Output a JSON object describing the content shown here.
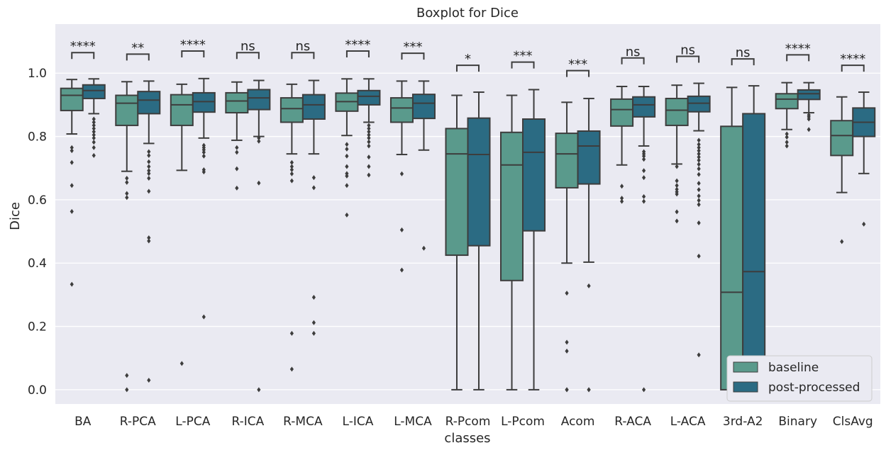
{
  "chart_data": {
    "type": "boxplot",
    "title": "Boxplot for Dice",
    "xlabel": "classes",
    "ylabel": "Dice",
    "ylim": [
      -0.045,
      1.155
    ],
    "yticks": [
      0.0,
      0.2,
      0.4,
      0.6,
      0.8,
      1.0
    ],
    "ytick_labels": [
      "0.0",
      "0.2",
      "0.4",
      "0.6",
      "0.8",
      "1.0"
    ],
    "grid": true,
    "legend_position": "lower-right",
    "colors": {
      "background": "#eaeaf2",
      "grid": "#ffffff",
      "baseline": "#5a9a8c",
      "post-processed": "#2b6b83",
      "line": "#3d3d3d"
    },
    "categories": [
      "BA",
      "R-PCA",
      "L-PCA",
      "R-ICA",
      "R-MCA",
      "L-ICA",
      "L-MCA",
      "R-Pcom",
      "L-Pcom",
      "Acom",
      "R-ACA",
      "L-ACA",
      "3rd-A2",
      "Binary",
      "ClsAvg"
    ],
    "significance": [
      "****",
      "**",
      "****",
      "ns",
      "ns",
      "****",
      "***",
      "*",
      "***",
      "***",
      "ns",
      "ns",
      "ns",
      "****",
      "****"
    ],
    "bracket_y": [
      1.065,
      1.06,
      1.07,
      1.065,
      1.065,
      1.07,
      1.063,
      1.025,
      1.035,
      1.008,
      1.048,
      1.053,
      1.045,
      1.058,
      1.025
    ],
    "series": [
      {
        "name": "baseline",
        "boxes": [
          {
            "whislo": 0.808,
            "q1": 0.882,
            "med": 0.93,
            "q3": 0.952,
            "whishi": 0.98,
            "fliers": [
              0.765,
              0.755,
              0.718,
              0.645,
              0.563,
              0.333
            ]
          },
          {
            "whislo": 0.69,
            "q1": 0.835,
            "med": 0.905,
            "q3": 0.93,
            "whishi": 0.973,
            "fliers": [
              0.668,
              0.655,
              0.62,
              0.607,
              0.045,
              0.0
            ]
          },
          {
            "whislo": 0.693,
            "q1": 0.835,
            "med": 0.9,
            "q3": 0.932,
            "whishi": 0.965,
            "fliers": [
              0.083
            ]
          },
          {
            "whislo": 0.788,
            "q1": 0.875,
            "med": 0.912,
            "q3": 0.938,
            "whishi": 0.972,
            "fliers": [
              0.765,
              0.75,
              0.698,
              0.637
            ]
          },
          {
            "whislo": 0.745,
            "q1": 0.845,
            "med": 0.888,
            "q3": 0.922,
            "whishi": 0.965,
            "fliers": [
              0.718,
              0.705,
              0.695,
              0.682,
              0.66,
              0.178,
              0.065
            ]
          },
          {
            "whislo": 0.803,
            "q1": 0.88,
            "med": 0.91,
            "q3": 0.937,
            "whishi": 0.982,
            "fliers": [
              0.775,
              0.76,
              0.738,
              0.705,
              0.683,
              0.675,
              0.645,
              0.552
            ]
          },
          {
            "whislo": 0.743,
            "q1": 0.845,
            "med": 0.89,
            "q3": 0.922,
            "whishi": 0.975,
            "fliers": [
              0.682,
              0.505,
              0.378
            ]
          },
          {
            "whislo": 0.0,
            "q1": 0.425,
            "med": 0.745,
            "q3": 0.825,
            "whishi": 0.93,
            "fliers": []
          },
          {
            "whislo": 0.0,
            "q1": 0.345,
            "med": 0.71,
            "q3": 0.813,
            "whishi": 0.93,
            "fliers": []
          },
          {
            "whislo": 0.4,
            "q1": 0.638,
            "med": 0.745,
            "q3": 0.81,
            "whishi": 0.908,
            "fliers": [
              0.305,
              0.15,
              0.122,
              0.0,
              0.0
            ]
          },
          {
            "whislo": 0.71,
            "q1": 0.833,
            "med": 0.885,
            "q3": 0.918,
            "whishi": 0.958,
            "fliers": [
              0.643,
              0.605,
              0.595
            ]
          },
          {
            "whislo": 0.713,
            "q1": 0.835,
            "med": 0.883,
            "q3": 0.92,
            "whishi": 0.962,
            "fliers": [
              0.705,
              0.66,
              0.645,
              0.633,
              0.625,
              0.618,
              0.562,
              0.533
            ]
          },
          {
            "whislo": 0.0,
            "q1": 0.0,
            "med": 0.308,
            "q3": 0.832,
            "whishi": 0.955,
            "fliers": []
          },
          {
            "whislo": 0.822,
            "q1": 0.888,
            "med": 0.918,
            "q3": 0.935,
            "whishi": 0.97,
            "fliers": [
              0.808,
              0.798,
              0.782,
              0.77
            ]
          },
          {
            "whislo": 0.623,
            "q1": 0.74,
            "med": 0.803,
            "q3": 0.85,
            "whishi": 0.925,
            "fliers": [
              0.468
            ]
          }
        ]
      },
      {
        "name": "post-processed",
        "boxes": [
          {
            "whislo": 0.872,
            "q1": 0.92,
            "med": 0.945,
            "q3": 0.963,
            "whishi": 0.982,
            "fliers": [
              0.855,
              0.845,
              0.835,
              0.825,
              0.815,
              0.805,
              0.795,
              0.782,
              0.765,
              0.74
            ]
          },
          {
            "whislo": 0.778,
            "q1": 0.872,
            "med": 0.915,
            "q3": 0.942,
            "whishi": 0.975,
            "fliers": [
              0.752,
              0.74,
              0.72,
              0.705,
              0.692,
              0.683,
              0.668,
              0.627,
              0.48,
              0.47,
              0.03
            ]
          },
          {
            "whislo": 0.795,
            "q1": 0.877,
            "med": 0.91,
            "q3": 0.938,
            "whishi": 0.983,
            "fliers": [
              0.772,
              0.765,
              0.758,
              0.75,
              0.738,
              0.695,
              0.688,
              0.23
            ]
          },
          {
            "whislo": 0.8,
            "q1": 0.885,
            "med": 0.922,
            "q3": 0.948,
            "whishi": 0.977,
            "fliers": [
              0.795,
              0.785,
              0.653,
              0.0
            ]
          },
          {
            "whislo": 0.745,
            "q1": 0.855,
            "med": 0.9,
            "q3": 0.932,
            "whishi": 0.977,
            "fliers": [
              0.67,
              0.638,
              0.292,
              0.212,
              0.178
            ]
          },
          {
            "whislo": 0.845,
            "q1": 0.9,
            "med": 0.927,
            "q3": 0.945,
            "whishi": 0.982,
            "fliers": [
              0.835,
              0.825,
              0.815,
              0.805,
              0.795,
              0.783,
              0.77,
              0.735,
              0.705,
              0.678
            ]
          },
          {
            "whislo": 0.757,
            "q1": 0.857,
            "med": 0.905,
            "q3": 0.933,
            "whishi": 0.975,
            "fliers": [
              0.447
            ]
          },
          {
            "whislo": 0.0,
            "q1": 0.455,
            "med": 0.743,
            "q3": 0.858,
            "whishi": 0.94,
            "fliers": []
          },
          {
            "whislo": 0.0,
            "q1": 0.502,
            "med": 0.75,
            "q3": 0.855,
            "whishi": 0.948,
            "fliers": []
          },
          {
            "whislo": 0.403,
            "q1": 0.65,
            "med": 0.77,
            "q3": 0.817,
            "whishi": 0.92,
            "fliers": [
              0.328,
              0.0,
              0.0
            ]
          },
          {
            "whislo": 0.77,
            "q1": 0.862,
            "med": 0.9,
            "q3": 0.925,
            "whishi": 0.958,
            "fliers": [
              0.752,
              0.745,
              0.738,
              0.728,
              0.692,
              0.67,
              0.61,
              0.595,
              0.0
            ]
          },
          {
            "whislo": 0.818,
            "q1": 0.878,
            "med": 0.905,
            "q3": 0.927,
            "whishi": 0.968,
            "fliers": [
              0.788,
              0.775,
              0.765,
              0.755,
              0.745,
              0.735,
              0.725,
              0.712,
              0.698,
              0.68,
              0.652,
              0.632,
              0.612,
              0.598,
              0.585,
              0.527,
              0.422,
              0.11
            ]
          },
          {
            "whislo": 0.0,
            "q1": 0.0,
            "med": 0.373,
            "q3": 0.872,
            "whishi": 0.96,
            "fliers": []
          },
          {
            "whislo": 0.875,
            "q1": 0.917,
            "med": 0.935,
            "q3": 0.947,
            "whishi": 0.97,
            "fliers": [
              0.868,
              0.862,
              0.855,
              0.822
            ]
          },
          {
            "whislo": 0.683,
            "q1": 0.8,
            "med": 0.845,
            "q3": 0.89,
            "whishi": 0.94,
            "fliers": [
              0.523
            ]
          }
        ]
      }
    ]
  }
}
